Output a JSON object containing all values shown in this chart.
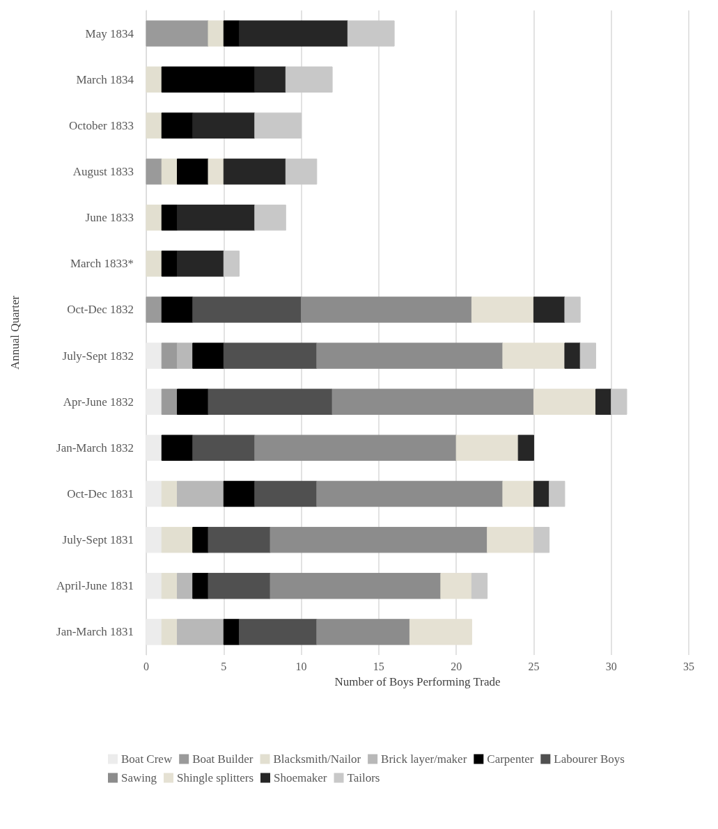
{
  "chart_data": {
    "type": "bar",
    "orientation": "horizontal",
    "stacked": true,
    "xlabel": "Number of Boys Performing Trade",
    "ylabel": "Annual Quarter",
    "categories": [
      "May 1834",
      "March 1834",
      "October 1833",
      "August 1833",
      "June 1833",
      "March 1833*",
      "Oct-Dec 1832",
      "July-Sept 1832",
      "Apr-June 1832",
      "Jan-March 1832",
      "Oct-Dec 1831",
      "July-Sept 1831",
      "April-June 1831",
      "Jan-March 1831"
    ],
    "series": [
      {
        "name": "Boat Crew",
        "color": "#ececec",
        "values": [
          null,
          null,
          null,
          null,
          null,
          null,
          null,
          1,
          1,
          1,
          1,
          1,
          1,
          1
        ]
      },
      {
        "name": "Boat Builder",
        "color": "#9a9a9a",
        "values": [
          4,
          null,
          null,
          1,
          null,
          null,
          1,
          1,
          1,
          null,
          null,
          null,
          null,
          null
        ]
      },
      {
        "name": "Blacksmith/Nailor",
        "color": "#e2dfd0",
        "values": [
          1,
          1,
          1,
          1,
          1,
          1,
          null,
          null,
          null,
          null,
          1,
          2,
          1,
          1
        ]
      },
      {
        "name": "Brick layer/maker",
        "color": "#b8b8b8",
        "values": [
          null,
          null,
          null,
          null,
          null,
          null,
          null,
          1,
          null,
          null,
          3,
          null,
          1,
          3
        ]
      },
      {
        "name": "Carpenter",
        "color": "#000000",
        "values": [
          1,
          6,
          2,
          2,
          1,
          1,
          2,
          2,
          2,
          2,
          2,
          1,
          1,
          1
        ]
      },
      {
        "name": "Labourer Boys",
        "color": "#505050",
        "values": [
          null,
          null,
          null,
          null,
          null,
          null,
          7,
          6,
          8,
          4,
          4,
          4,
          4,
          5
        ]
      },
      {
        "name": "Sawing",
        "color": "#8c8c8c",
        "values": [
          null,
          null,
          null,
          null,
          null,
          null,
          11,
          12,
          13,
          13,
          12,
          14,
          11,
          6
        ]
      },
      {
        "name": "Shingle splitters",
        "color": "#e5e1d3",
        "values": [
          null,
          null,
          null,
          1,
          null,
          null,
          4,
          4,
          4,
          4,
          2,
          3,
          2,
          4
        ]
      },
      {
        "name": "Shoemaker",
        "color": "#262626",
        "values": [
          7,
          2,
          4,
          4,
          5,
          3,
          2,
          1,
          1,
          1,
          1,
          null,
          null,
          null
        ]
      },
      {
        "name": "Tailors",
        "color": "#c8c8c8",
        "values": [
          3,
          3,
          3,
          2,
          2,
          1,
          1,
          1,
          1,
          null,
          1,
          1,
          1,
          null
        ]
      }
    ],
    "xlim": [
      0,
      35
    ],
    "xticks": [
      0,
      5,
      10,
      15,
      20,
      25,
      30,
      35
    ],
    "grid": "x",
    "legend": "bottom"
  }
}
